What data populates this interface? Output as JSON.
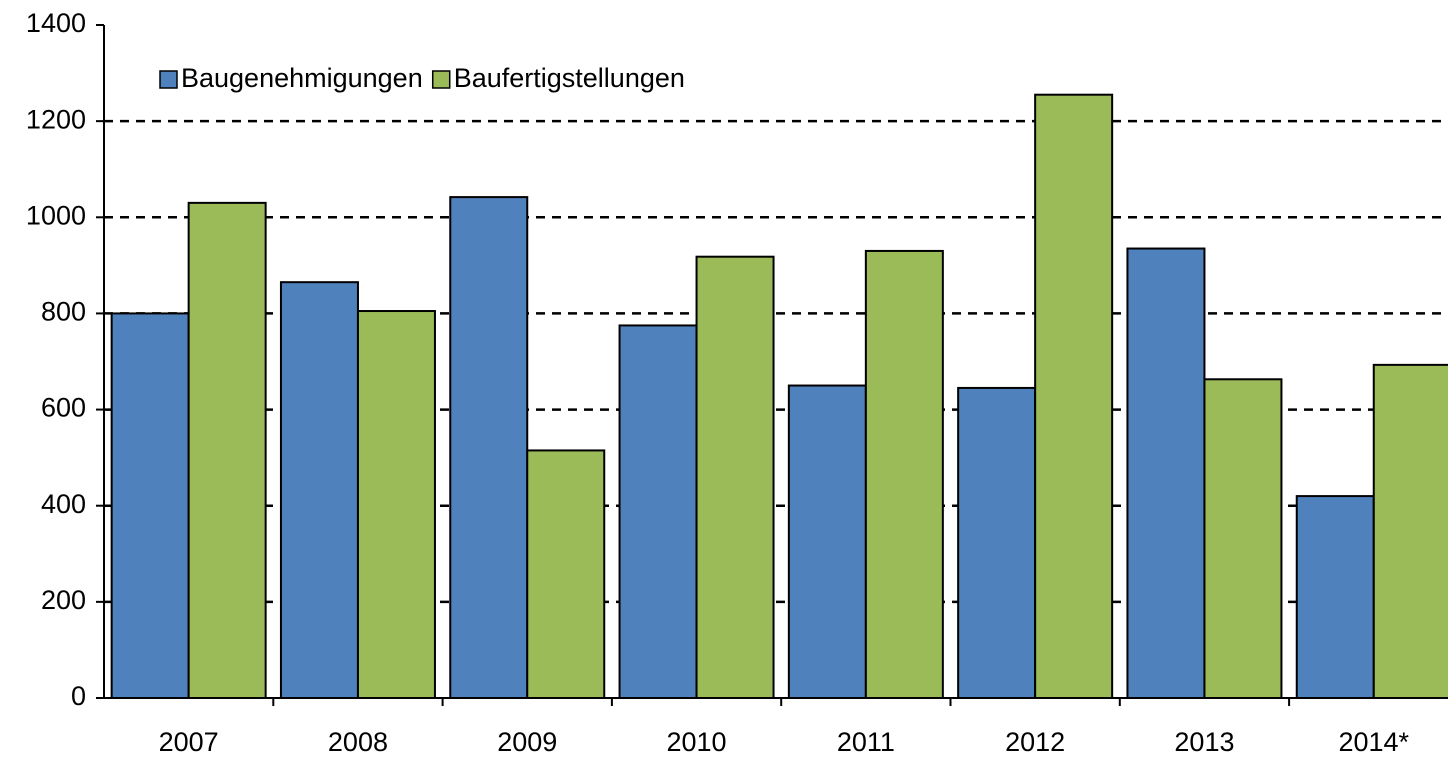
{
  "chart_data": {
    "type": "bar",
    "categories": [
      "2007",
      "2008",
      "2009",
      "2010",
      "2011",
      "2012",
      "2013",
      "2014*"
    ],
    "series": [
      {
        "name": "Baugenehmigungen",
        "color": "#4f81bd",
        "values": [
          800,
          865,
          1042,
          775,
          650,
          645,
          935,
          420
        ]
      },
      {
        "name": "Baufertigstellungen",
        "color": "#9bbb59",
        "values": [
          1030,
          805,
          515,
          918,
          930,
          1255,
          663,
          693
        ]
      }
    ],
    "ylim": [
      0,
      1400
    ],
    "yticks": [
      0,
      200,
      400,
      600,
      800,
      1000,
      1200,
      1400
    ],
    "grid": true,
    "legend": "top-left"
  }
}
